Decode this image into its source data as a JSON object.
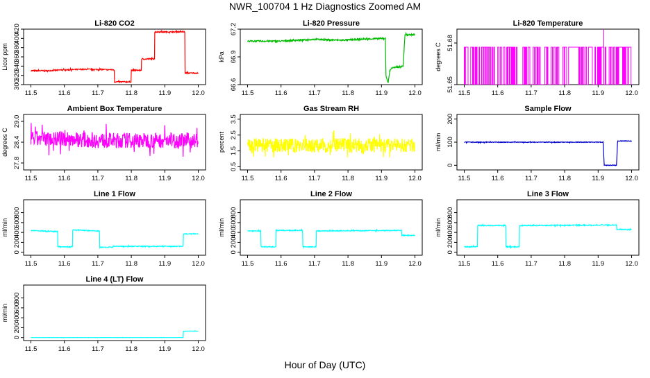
{
  "figure": {
    "title": "NWR_100704  1 Hz Diagnostics Zoomed AM",
    "xlabel": "Hour of Day (UTC)"
  },
  "chart_data": [
    {
      "type": "line",
      "title": "Li-820 CO2",
      "ylabel": "Licor ppm",
      "color": "#ff0000",
      "xlim": [
        11.5,
        12.0
      ],
      "ylim": [
        300,
        420
      ],
      "xticks": [
        "11.5",
        "11.6",
        "11.7",
        "11.8",
        "11.9",
        "12.0"
      ],
      "yticks": [
        {
          "v": 300,
          "t": "300"
        },
        {
          "v": 320,
          "t": "320"
        },
        {
          "v": 340,
          "t": "340"
        },
        {
          "v": 360,
          "t": "360"
        },
        {
          "v": 380,
          "t": "380"
        },
        {
          "v": 400,
          "t": "400"
        },
        {
          "v": 420,
          "t": "420"
        }
      ],
      "noise": 1.2,
      "series": [
        {
          "x": [
            11.5,
            11.55,
            11.6,
            11.65,
            11.7,
            11.75,
            11.75,
            11.8,
            11.8,
            11.83,
            11.83,
            11.87,
            11.87,
            11.96,
            11.96,
            12.0
          ],
          "y": [
            330,
            330,
            332,
            333,
            333,
            332,
            306,
            306,
            331,
            331,
            355,
            356,
            414,
            414,
            325,
            325
          ]
        }
      ]
    },
    {
      "type": "line",
      "title": "Li-820 Pressure",
      "ylabel": "kPa",
      "color": "#00bb00",
      "xlim": [
        11.5,
        12.0
      ],
      "ylim": [
        66.6,
        67.2
      ],
      "xticks": [
        "11.5",
        "11.6",
        "11.7",
        "11.8",
        "11.9",
        "12.0"
      ],
      "yticks": [
        {
          "v": 66.6,
          "t": "66.6"
        },
        {
          "v": 66.9,
          "t": "66.9"
        },
        {
          "v": 67.2,
          "t": "67.2"
        }
      ],
      "noise": 0.008,
      "series": [
        {
          "x": [
            11.5,
            11.6,
            11.7,
            11.78,
            11.83,
            11.912,
            11.913,
            11.92,
            11.925,
            11.93,
            11.95,
            11.965,
            11.97,
            12.0
          ],
          "y": [
            67.07,
            67.07,
            67.09,
            67.08,
            67.09,
            67.1,
            66.7,
            66.62,
            66.75,
            66.78,
            66.79,
            66.8,
            67.14,
            67.14
          ]
        }
      ]
    },
    {
      "type": "spikes",
      "title": "Li-820 Temperature",
      "ylabel": "degrees C",
      "color": "#ff00ff",
      "xlim": [
        11.5,
        12.0
      ],
      "ylim": [
        51.65,
        51.69
      ],
      "xticks": [
        "11.5",
        "11.6",
        "11.7",
        "11.8",
        "11.9",
        "12.0"
      ],
      "yticks": [
        {
          "v": 51.65,
          "t": "51.65"
        },
        {
          "v": 51.68,
          "t": "51.68"
        }
      ],
      "low": 51.65,
      "high": 51.677,
      "peak": {
        "x": 11.917,
        "y": 51.69
      }
    },
    {
      "type": "line",
      "title": "Ambient Box Temperature",
      "ylabel": "degrees C",
      "color": "#ff00ff",
      "xlim": [
        11.5,
        12.0
      ],
      "ylim": [
        27.6,
        29.2
      ],
      "xticks": [
        "11.5",
        "11.6",
        "11.7",
        "11.8",
        "11.9",
        "12.0"
      ],
      "yticks": [
        {
          "v": 27.8,
          "t": "27.8"
        },
        {
          "v": 28.4,
          "t": "28.4"
        },
        {
          "v": 29.0,
          "t": "29.0"
        }
      ],
      "noise": 0.22,
      "series": [
        {
          "x": [
            11.5,
            11.6,
            11.7,
            11.8,
            11.9,
            12.0
          ],
          "y": [
            28.5,
            28.5,
            28.45,
            28.45,
            28.45,
            28.45
          ]
        }
      ]
    },
    {
      "type": "line",
      "title": "Gas Stream RH",
      "ylabel": "percent",
      "color": "#ffff00",
      "xlim": [
        11.5,
        12.0
      ],
      "ylim": [
        0.3,
        3.8
      ],
      "xticks": [
        "11.5",
        "11.6",
        "11.7",
        "11.8",
        "11.9",
        "12.0"
      ],
      "yticks": [
        {
          "v": 0.5,
          "t": "0.5"
        },
        {
          "v": 1.5,
          "t": "1.5"
        },
        {
          "v": 2.5,
          "t": "2.5"
        },
        {
          "v": 3.5,
          "t": "3.5"
        }
      ],
      "noise": 0.45,
      "series": [
        {
          "x": [
            11.5,
            11.6,
            11.7,
            11.8,
            11.9,
            12.0
          ],
          "y": [
            1.85,
            1.85,
            1.85,
            1.85,
            1.85,
            1.85
          ]
        }
      ]
    },
    {
      "type": "line",
      "title": "Sample Flow",
      "ylabel": "ml/min",
      "color": "#0000cc",
      "xlim": [
        11.5,
        12.0
      ],
      "ylim": [
        -20,
        220
      ],
      "xticks": [
        "11.5",
        "11.6",
        "11.7",
        "11.8",
        "11.9",
        "12.0"
      ],
      "yticks": [
        {
          "v": 0,
          "t": "0"
        },
        {
          "v": 100,
          "t": "100"
        },
        {
          "v": 200,
          "t": "200"
        }
      ],
      "noise": 1.5,
      "series": [
        {
          "x": [
            11.5,
            11.6,
            11.7,
            11.8,
            11.9,
            11.915,
            11.918,
            11.955,
            11.958,
            12.0
          ],
          "y": [
            100,
            100,
            100,
            100,
            100,
            100,
            0,
            0,
            105,
            105
          ]
        }
      ]
    },
    {
      "type": "line",
      "title": "Line 1 Flow",
      "ylabel": "ml/min",
      "color": "#00ffff",
      "xlim": [
        11.5,
        12.0
      ],
      "ylim": [
        -60,
        1060
      ],
      "xticks": [
        "11.5",
        "11.6",
        "11.7",
        "11.8",
        "11.9",
        "12.0"
      ],
      "yticks": [
        {
          "v": 0,
          "t": "0"
        },
        {
          "v": 200,
          "t": "200"
        },
        {
          "v": 400,
          "t": "400"
        },
        {
          "v": 600,
          "t": "600"
        },
        {
          "v": 800,
          "t": "800"
        }
      ],
      "noise": 8,
      "series": [
        {
          "x": [
            11.5,
            11.58,
            11.58,
            11.625,
            11.625,
            11.705,
            11.705,
            11.745,
            11.745,
            11.955,
            11.955,
            12.0
          ],
          "y": [
            440,
            420,
            110,
            110,
            450,
            430,
            100,
            100,
            120,
            120,
            370,
            370
          ]
        }
      ]
    },
    {
      "type": "line",
      "title": "Line 2 Flow",
      "ylabel": "ml/min",
      "color": "#00ffff",
      "xlim": [
        11.5,
        12.0
      ],
      "ylim": [
        -60,
        1060
      ],
      "xticks": [
        "11.5",
        "11.6",
        "11.7",
        "11.8",
        "11.9",
        "12.0"
      ],
      "yticks": [
        {
          "v": 0,
          "t": "0"
        },
        {
          "v": 200,
          "t": "200"
        },
        {
          "v": 400,
          "t": "400"
        },
        {
          "v": 600,
          "t": "600"
        },
        {
          "v": 800,
          "t": "800"
        }
      ],
      "noise": 8,
      "series": [
        {
          "x": [
            11.5,
            11.54,
            11.54,
            11.585,
            11.585,
            11.665,
            11.665,
            11.705,
            11.705,
            11.96,
            11.96,
            12.0
          ],
          "y": [
            430,
            430,
            110,
            110,
            440,
            440,
            110,
            110,
            430,
            440,
            340,
            340
          ]
        }
      ]
    },
    {
      "type": "line",
      "title": "Line 3 Flow",
      "ylabel": "ml/min",
      "color": "#00ffff",
      "xlim": [
        11.5,
        12.0
      ],
      "ylim": [
        -60,
        1060
      ],
      "xticks": [
        "11.5",
        "11.6",
        "11.7",
        "11.8",
        "11.9",
        "12.0"
      ],
      "yticks": [
        {
          "v": 0,
          "t": "0"
        },
        {
          "v": 200,
          "t": "200"
        },
        {
          "v": 400,
          "t": "400"
        },
        {
          "v": 600,
          "t": "600"
        },
        {
          "v": 800,
          "t": "800"
        }
      ],
      "noise": 10,
      "series": [
        {
          "x": [
            11.5,
            11.54,
            11.54,
            11.625,
            11.625,
            11.665,
            11.665,
            11.955,
            11.955,
            12.0
          ],
          "y": [
            110,
            110,
            540,
            540,
            110,
            110,
            540,
            550,
            460,
            460
          ]
        }
      ]
    },
    {
      "type": "line",
      "title": "Line 4 (LT) Flow",
      "ylabel": "ml/min",
      "color": "#00ffff",
      "xlim": [
        11.5,
        12.0
      ],
      "ylim": [
        -60,
        1060
      ],
      "xticks": [
        "11.5",
        "11.6",
        "11.7",
        "11.8",
        "11.9",
        "12.0"
      ],
      "yticks": [
        {
          "v": 0,
          "t": "0"
        },
        {
          "v": 200,
          "t": "200"
        },
        {
          "v": 400,
          "t": "400"
        },
        {
          "v": 600,
          "t": "600"
        },
        {
          "v": 800,
          "t": "800"
        }
      ],
      "noise": 2,
      "series": [
        {
          "x": [
            11.5,
            11.955,
            11.955,
            12.0
          ],
          "y": [
            0,
            0,
            130,
            130
          ]
        }
      ]
    }
  ]
}
